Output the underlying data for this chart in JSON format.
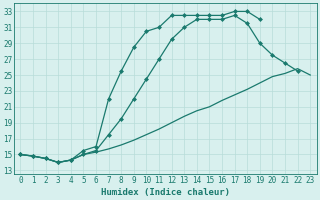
{
  "line1_x": [
    0,
    1,
    2,
    3,
    4,
    5,
    6,
    7,
    8,
    9,
    10,
    11,
    12,
    13,
    14,
    15,
    16,
    17,
    18,
    19
  ],
  "line1_y": [
    15.0,
    14.8,
    14.5,
    14.0,
    14.3,
    15.5,
    16.0,
    22.0,
    25.5,
    28.5,
    30.5,
    31.0,
    32.5,
    32.5,
    32.5,
    32.5,
    32.5,
    33.0,
    33.0,
    32.0
  ],
  "line2_x": [
    0,
    1,
    2,
    3,
    4,
    5,
    6,
    7,
    8,
    9,
    10,
    11,
    12,
    13,
    14,
    15,
    16,
    17,
    18,
    19,
    20,
    21,
    22
  ],
  "line2_y": [
    15.0,
    14.8,
    14.5,
    14.0,
    14.3,
    15.0,
    15.5,
    17.5,
    19.5,
    22.0,
    24.5,
    27.0,
    29.5,
    31.0,
    32.0,
    32.0,
    32.0,
    32.5,
    31.5,
    29.0,
    27.5,
    26.5,
    25.5
  ],
  "line3_x": [
    0,
    1,
    2,
    3,
    4,
    5,
    6,
    7,
    8,
    9,
    10,
    11,
    12,
    13,
    14,
    15,
    16,
    17,
    18,
    19,
    20,
    21,
    22,
    23
  ],
  "line3_y": [
    15.0,
    14.8,
    14.5,
    14.0,
    14.3,
    15.0,
    15.3,
    15.7,
    16.2,
    16.8,
    17.5,
    18.2,
    19.0,
    19.8,
    20.5,
    21.0,
    21.8,
    22.5,
    23.2,
    24.0,
    24.8,
    25.2,
    25.8,
    25.0
  ],
  "line_color": "#1a7a6e",
  "bg_color": "#d8f0ee",
  "grid_color": "#b8ddd9",
  "xlabel": "Humidex (Indice chaleur)",
  "ylabel_ticks": [
    13,
    15,
    17,
    19,
    21,
    23,
    25,
    27,
    29,
    31,
    33
  ],
  "xticks": [
    0,
    1,
    2,
    3,
    4,
    5,
    6,
    7,
    8,
    9,
    10,
    11,
    12,
    13,
    14,
    15,
    16,
    17,
    18,
    19,
    20,
    21,
    22,
    23
  ],
  "xlim": [
    -0.5,
    23.5
  ],
  "ylim": [
    12.5,
    34.0
  ],
  "marker": "D",
  "marker_size": 2.0,
  "line_width": 0.9,
  "font_size": 5.5,
  "xlabel_fontsize": 6.5
}
